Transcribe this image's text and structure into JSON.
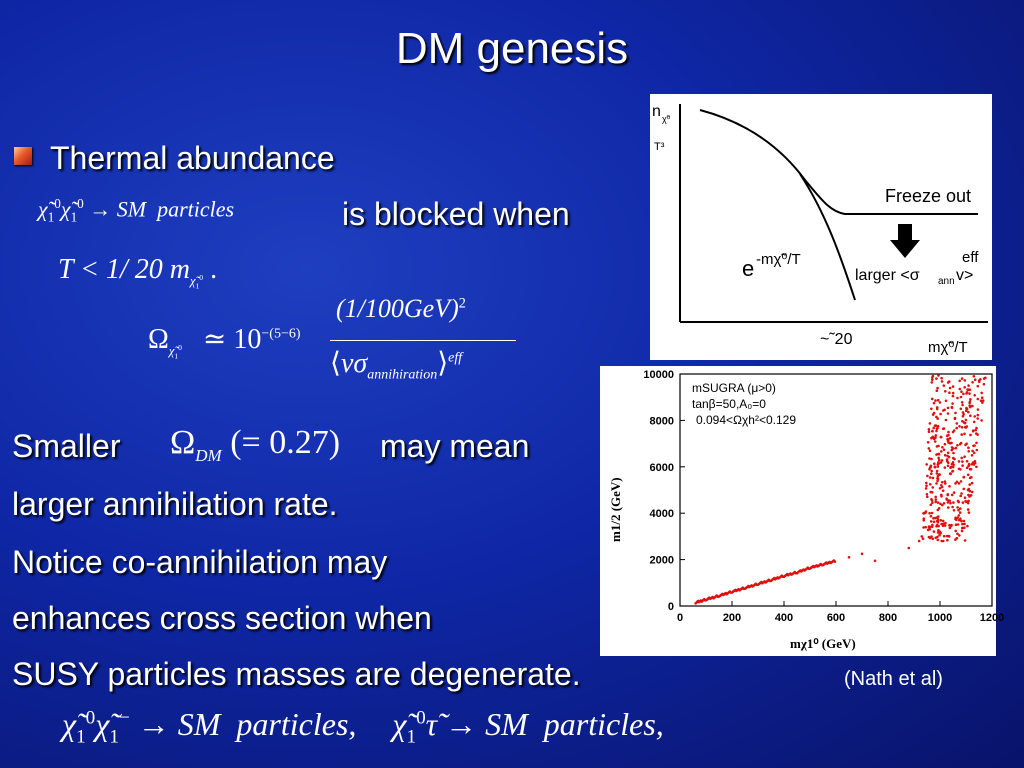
{
  "slide": {
    "title": "DM genesis",
    "bullet": "Thermal abundance",
    "blocked_text": "is blocked when",
    "smaller": "Smaller",
    "may_mean": "may mean",
    "lines": [
      "larger annihilation rate.",
      "Notice co-annihilation may",
      "enhances cross section when",
      "SUSY particles masses are degenerate."
    ],
    "citation": "(Nath et al)"
  },
  "math": {
    "reaction1_particles": "particles",
    "reaction1_sm": "SM",
    "cond_T": "T < 1/ 20 m",
    "cond_dot": ".",
    "omega_power": "10",
    "omega_exp": "−(5−6)",
    "omega_numer": "(1/100GeV)",
    "omega_denom_sub": "annihiration",
    "omega_denom_sup": "eff",
    "omega_dm_val": "(= 0.27)",
    "bottom_sm1": "SM",
    "bottom_particles1": "particles,",
    "bottom_sm2": "SM",
    "bottom_particles2": "particles,"
  },
  "freezeout": {
    "y_label": "n",
    "y_label_sub": "χ̃⁰",
    "y_label_den": "T³",
    "freeze_label": "Freeze out",
    "exp_label": "e",
    "exp_sup": "-mχ̃⁰/T",
    "larger_label": "larger <σ",
    "larger_sub": "ann",
    "larger_tail": " v>",
    "eff_label": "eff",
    "approx_label": "~˜20",
    "x_label": "mχ̃⁰/T"
  },
  "scatter": {
    "legend": [
      "mSUGRA (μ>0)",
      "tanβ=50,A₀=0",
      "0.094<Ωχh²<0.129"
    ],
    "ylabel": "m1/2 (GeV)",
    "xlabel": "mχ1⁰ (GeV)",
    "y_ticks": [
      "0",
      "2000",
      "4000",
      "6000",
      "8000",
      "10000"
    ],
    "x_ticks": [
      "0",
      "200",
      "400",
      "600",
      "800",
      "1000",
      "1200"
    ],
    "colors": {
      "points": "#e01010"
    }
  },
  "chart_data": {
    "type": "scatter",
    "title": "",
    "xlabel": "mχ1⁰ (GeV)",
    "ylabel": "m1/2 (GeV)",
    "xlim": [
      0,
      1200
    ],
    "ylim": [
      0,
      10000
    ],
    "series": [
      {
        "values_band_linear": [
          [
            60,
            150
          ],
          [
            100,
            280
          ],
          [
            150,
            440
          ],
          [
            200,
            620
          ],
          [
            250,
            780
          ],
          [
            300,
            950
          ],
          [
            350,
            1120
          ],
          [
            400,
            1300
          ],
          [
            450,
            1450
          ],
          [
            500,
            1650
          ],
          [
            550,
            1800
          ],
          [
            600,
            1950
          ]
        ],
        "values_sparse": [
          [
            650,
            2100
          ],
          [
            700,
            2250
          ],
          [
            750,
            1950
          ],
          [
            880,
            2500
          ],
          [
            920,
            2800
          ]
        ],
        "values_cluster": [
          [
            930,
            3000
          ],
          [
            960,
            4000
          ],
          [
            990,
            5500
          ],
          [
            1020,
            6500
          ],
          [
            1050,
            7500
          ],
          [
            1080,
            8500
          ],
          [
            1110,
            9500
          ],
          [
            1130,
            9900
          ],
          [
            1000,
            3200
          ],
          [
            1060,
            3800
          ],
          [
            1100,
            4500
          ],
          [
            1140,
            6000
          ],
          [
            1160,
            8000
          ],
          [
            1170,
            9800
          ]
        ]
      }
    ]
  }
}
